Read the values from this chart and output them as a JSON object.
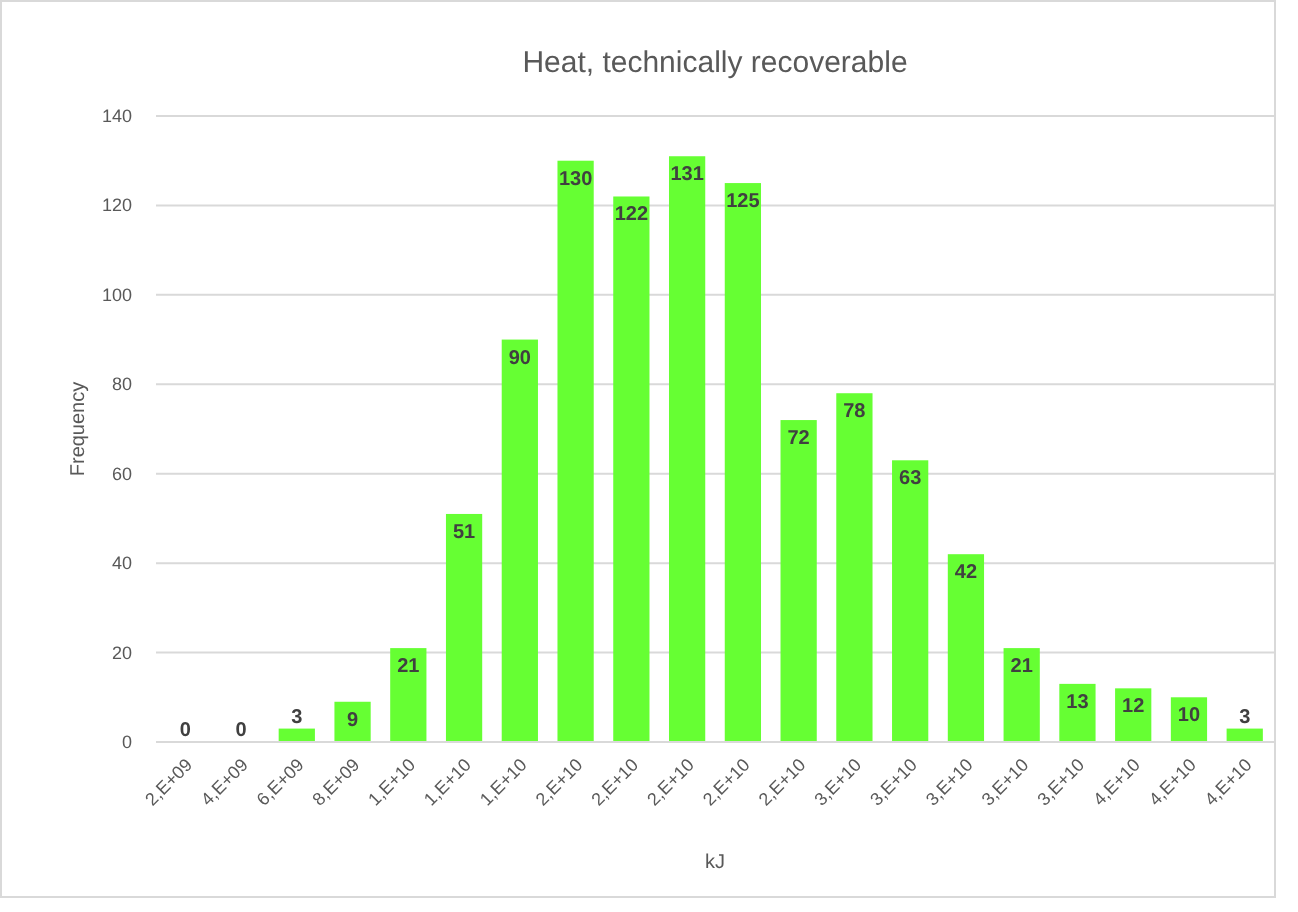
{
  "chart_data": {
    "type": "bar",
    "title": "Heat, technically recoverable",
    "xlabel": "kJ",
    "ylabel": "Frequency",
    "categories": [
      "2,E+09",
      "4,E+09",
      "6,E+09",
      "8,E+09",
      "1,E+10",
      "1,E+10",
      "1,E+10",
      "2,E+10",
      "2,E+10",
      "2,E+10",
      "2,E+10",
      "2,E+10",
      "3,E+10",
      "3,E+10",
      "3,E+10",
      "3,E+10",
      "3,E+10",
      "4,E+10",
      "4,E+10",
      "4,E+10"
    ],
    "values": [
      0,
      0,
      3,
      9,
      21,
      51,
      90,
      130,
      122,
      131,
      125,
      72,
      78,
      63,
      42,
      21,
      13,
      12,
      10,
      3
    ],
    "color": "#66ff33",
    "ylim": [
      0,
      140
    ],
    "yticks": [
      0,
      20,
      40,
      60,
      80,
      100,
      120,
      140
    ],
    "grid": "y",
    "data_labels": true
  }
}
